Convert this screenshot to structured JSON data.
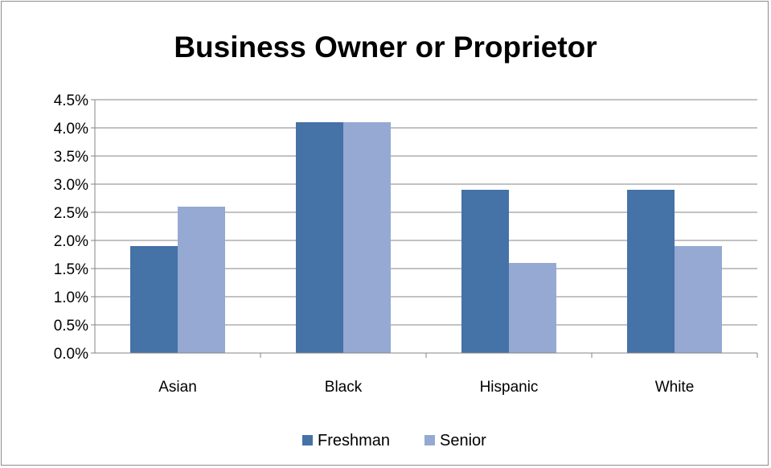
{
  "chart_data": {
    "type": "bar",
    "title": "Business Owner or Proprietor",
    "categories": [
      "Asian",
      "Black",
      "Hispanic",
      "White"
    ],
    "series": [
      {
        "name": "Freshman",
        "values": [
          1.9,
          4.1,
          2.9,
          2.9
        ],
        "color": "#4572a7"
      },
      {
        "name": "Senior",
        "values": [
          2.6,
          4.1,
          1.6,
          1.9
        ],
        "color": "#95a9d2"
      }
    ],
    "yticks": [
      "0.0%",
      "0.5%",
      "1.0%",
      "1.5%",
      "2.0%",
      "2.5%",
      "3.0%",
      "3.5%",
      "4.0%",
      "4.5%"
    ],
    "ylim": [
      0,
      4.5
    ],
    "yunit": "%",
    "grid": true,
    "legend_position": "bottom"
  }
}
